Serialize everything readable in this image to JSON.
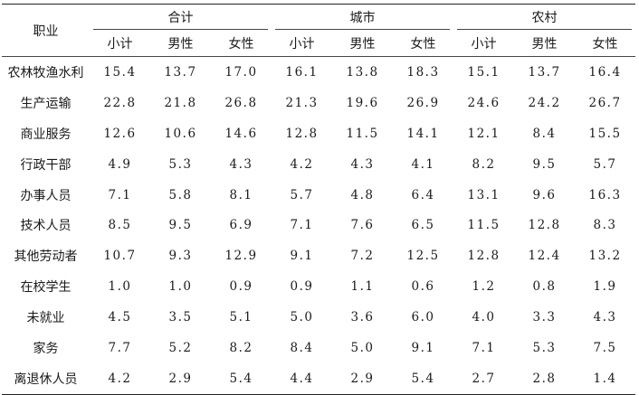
{
  "table": {
    "occupation_header": "职业",
    "groups": [
      "合计",
      "城市",
      "农村"
    ],
    "subcolumns": [
      "小计",
      "男性",
      "女性",
      "小计",
      "男性",
      "女性",
      "小计",
      "男性",
      "女性"
    ],
    "rows": [
      {
        "label": "农林牧渔水利",
        "values": [
          "15.4",
          "13.7",
          "17.0",
          "16.1",
          "13.8",
          "18.3",
          "15.1",
          "13.7",
          "16.4"
        ]
      },
      {
        "label": "生产运输",
        "values": [
          "22.8",
          "21.8",
          "26.8",
          "21.3",
          "19.6",
          "26.9",
          "24.6",
          "24.2",
          "26.7"
        ]
      },
      {
        "label": "商业服务",
        "values": [
          "12.6",
          "10.6",
          "14.6",
          "12.8",
          "11.5",
          "14.1",
          "12.1",
          "8.4",
          "15.5"
        ]
      },
      {
        "label": "行政干部",
        "values": [
          "4.9",
          "5.3",
          "4.3",
          "4.2",
          "4.3",
          "4.1",
          "8.2",
          "9.5",
          "5.7"
        ]
      },
      {
        "label": "办事人员",
        "values": [
          "7.1",
          "5.8",
          "8.1",
          "5.7",
          "4.8",
          "6.4",
          "13.1",
          "9.6",
          "16.3"
        ]
      },
      {
        "label": "技术人员",
        "values": [
          "8.5",
          "9.5",
          "6.9",
          "7.1",
          "7.6",
          "6.5",
          "11.5",
          "12.8",
          "8.3"
        ]
      },
      {
        "label": "其他劳动者",
        "values": [
          "10.7",
          "9.3",
          "12.9",
          "9.1",
          "7.2",
          "12.5",
          "12.8",
          "12.4",
          "13.2"
        ]
      },
      {
        "label": "在校学生",
        "values": [
          "1.0",
          "1.0",
          "0.9",
          "0.9",
          "1.1",
          "0.6",
          "1.2",
          "0.8",
          "1.9"
        ]
      },
      {
        "label": "未就业",
        "values": [
          "4.5",
          "3.5",
          "5.1",
          "5.0",
          "3.6",
          "6.0",
          "4.0",
          "3.3",
          "4.3"
        ]
      },
      {
        "label": "家务",
        "values": [
          "7.7",
          "5.2",
          "8.2",
          "8.4",
          "5.0",
          "9.1",
          "7.1",
          "5.3",
          "7.5"
        ]
      },
      {
        "label": "离退休人员",
        "values": [
          "4.2",
          "2.9",
          "5.4",
          "4.4",
          "2.9",
          "5.4",
          "2.7",
          "2.8",
          "1.4"
        ]
      }
    ]
  }
}
